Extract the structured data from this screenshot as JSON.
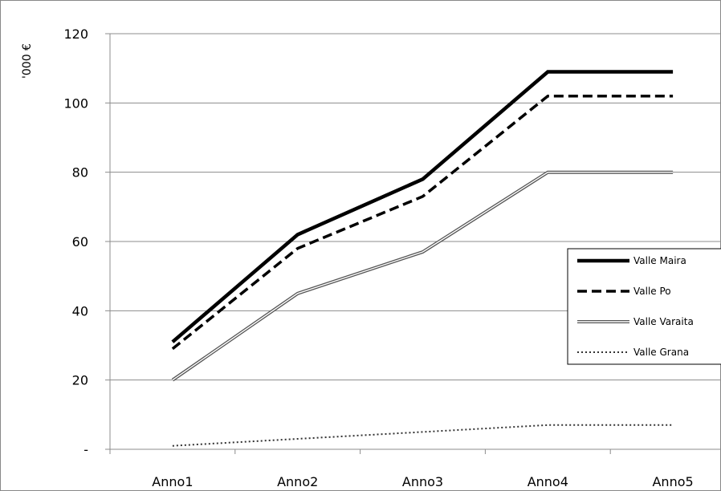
{
  "chart_data": {
    "type": "line",
    "title": "",
    "ylabel": "'000 €",
    "xlabel": "",
    "categories": [
      "Anno1",
      "Anno2",
      "Anno3",
      "Anno4",
      "Anno5"
    ],
    "ylim": [
      0,
      120
    ],
    "yticks": [
      0,
      20,
      40,
      60,
      80,
      100,
      120
    ],
    "ytick_labels": [
      "-",
      "20",
      "40",
      "60",
      "80",
      "100",
      "120"
    ],
    "grid": true,
    "legend_position": "right",
    "series": [
      {
        "name": "Valle Maira",
        "values": [
          31,
          62,
          78,
          109,
          109
        ],
        "style": "solid-thick",
        "color": "#000000"
      },
      {
        "name": "Valle Po",
        "values": [
          29,
          58,
          73,
          102,
          102
        ],
        "style": "dashed",
        "color": "#000000"
      },
      {
        "name": "Valle Varaita",
        "values": [
          20,
          45,
          57,
          80,
          80
        ],
        "style": "double",
        "color": "#555555"
      },
      {
        "name": "Valle Grana",
        "values": [
          1,
          3,
          5,
          7,
          7
        ],
        "style": "dotted",
        "color": "#333333"
      }
    ]
  }
}
